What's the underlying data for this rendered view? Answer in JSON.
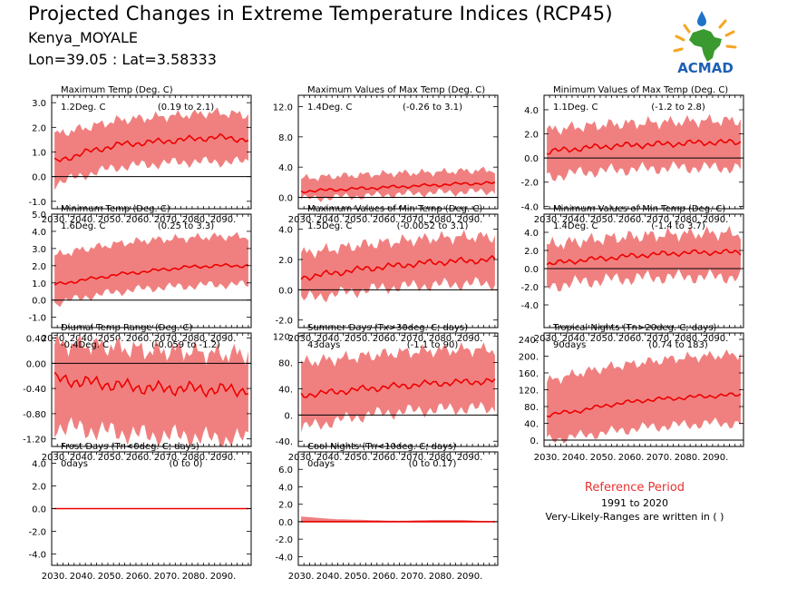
{
  "header": {
    "title": "Projected Changes in Extreme Temperature Indices (RCP45)",
    "location": "Kenya_MOYALE",
    "coords": "Lon=39.05 : Lat=3.58333"
  },
  "logo": {
    "text": "ACMAD",
    "icon": "africa-map-logo-icon"
  },
  "reference": {
    "title": "Reference Period",
    "years": "1991 to 2020",
    "note": "Very-Likely-Ranges are written in ( )"
  },
  "colors": {
    "band": "#f08080",
    "median": "#ee0000",
    "zero": "#000000",
    "ref_text": "#e8312f"
  },
  "x_ticks": [
    "2030.",
    "2040.",
    "2050.",
    "2060.",
    "2070.",
    "2080.",
    "2090."
  ],
  "chart_data": [
    {
      "type": "area",
      "title": "Maximum Temp (Deg. C)",
      "value": "1.2Deg. C",
      "range": "(0.19 to 2.1)",
      "xlim": [
        2029,
        2100
      ],
      "ylim": [
        -1.3,
        3.3
      ],
      "yticks": [
        "-1.0",
        "0.0",
        "1.0",
        "2.0",
        "3.0"
      ],
      "median": [
        0.6,
        1.0,
        1.3,
        1.4,
        1.5,
        1.6,
        1.5
      ],
      "lower": [
        -0.3,
        0.1,
        0.4,
        0.5,
        0.6,
        0.6,
        0.6
      ],
      "upper": [
        1.7,
        2.0,
        2.3,
        2.4,
        2.5,
        2.6,
        2.5
      ],
      "amp": 0.15,
      "bandamp": 0.25
    },
    {
      "type": "area",
      "title": "Maximum Values of Max Temp (Deg. C)",
      "value": "1.4Deg. C",
      "range": "(-0.26 to 3.1)",
      "xlim": [
        2029,
        2100
      ],
      "ylim": [
        -1.5,
        13.5
      ],
      "yticks": [
        "0.0",
        "4.0",
        "8.0",
        "12.0"
      ],
      "median": [
        0.8,
        1.0,
        1.2,
        1.4,
        1.6,
        1.8,
        1.9
      ],
      "lower": [
        -0.2,
        0.0,
        0.2,
        0.4,
        0.6,
        0.7,
        0.8
      ],
      "upper": [
        2.5,
        2.8,
        3.0,
        3.2,
        3.3,
        3.5,
        3.6
      ],
      "amp": 0.25,
      "bandamp": 0.6
    },
    {
      "type": "area",
      "title": "Minimum Values of Max Temp (Deg. C)",
      "value": "1.1Deg. C",
      "range": "(-1.2 to 2.8)",
      "xlim": [
        2029,
        2100
      ],
      "ylim": [
        -4.2,
        5.2
      ],
      "yticks": [
        "-4.0",
        "-2.0",
        "0.0",
        "2.0",
        "4.0"
      ],
      "median": [
        0.5,
        0.8,
        1.0,
        1.1,
        1.2,
        1.3,
        1.3
      ],
      "lower": [
        -1.6,
        -1.2,
        -1.0,
        -0.9,
        -0.8,
        -0.8,
        -0.8
      ],
      "upper": [
        2.3,
        2.6,
        2.8,
        2.9,
        3.0,
        3.1,
        3.1
      ],
      "amp": 0.3,
      "bandamp": 0.6
    },
    {
      "type": "area",
      "title": "Minimum Temp (Deg. C)",
      "value": "1.6Deg. C",
      "range": "(0.25 to 3.3)",
      "xlim": [
        2029,
        2100
      ],
      "ylim": [
        -1.6,
        5.0
      ],
      "yticks": [
        "-1.0",
        "0.0",
        "1.0",
        "2.0",
        "3.0",
        "4.0",
        "5.0"
      ],
      "median": [
        0.9,
        1.2,
        1.5,
        1.7,
        1.9,
        2.0,
        2.0
      ],
      "lower": [
        -0.2,
        0.2,
        0.5,
        0.7,
        0.8,
        0.9,
        0.9
      ],
      "upper": [
        2.6,
        3.0,
        3.3,
        3.5,
        3.6,
        3.7,
        3.7
      ],
      "amp": 0.12,
      "bandamp": 0.3
    },
    {
      "type": "area",
      "title": "Maximum Values of Min Temp (Deg. C)",
      "value": "1.5Deg. C",
      "range": "(-0.0052 to 3.1)",
      "xlim": [
        2029,
        2100
      ],
      "ylim": [
        -2.5,
        5.0
      ],
      "yticks": [
        "-2.0",
        "0.0",
        "2.0",
        "4.0"
      ],
      "median": [
        0.8,
        1.1,
        1.4,
        1.6,
        1.8,
        1.9,
        2.0
      ],
      "lower": [
        -0.6,
        -0.3,
        0.0,
        0.2,
        0.3,
        0.4,
        0.4
      ],
      "upper": [
        2.4,
        2.7,
        3.0,
        3.2,
        3.4,
        3.5,
        3.5
      ],
      "amp": 0.25,
      "bandamp": 0.5
    },
    {
      "type": "area",
      "title": "Minimum Values of Min Temp (Deg. C)",
      "value": "1.4Deg. C",
      "range": "(-1.4 to 3.7)",
      "xlim": [
        2029,
        2100
      ],
      "ylim": [
        -6.5,
        6.0
      ],
      "yticks": [
        "-4.0",
        "-2.0",
        "0.0",
        "2.0",
        "4.0"
      ],
      "median": [
        0.5,
        0.9,
        1.2,
        1.5,
        1.7,
        1.8,
        1.8
      ],
      "lower": [
        -2.0,
        -1.5,
        -1.2,
        -1.0,
        -0.9,
        -0.9,
        -0.9
      ],
      "upper": [
        2.6,
        3.0,
        3.4,
        3.6,
        3.8,
        3.9,
        3.9
      ],
      "amp": 0.35,
      "bandamp": 0.9
    },
    {
      "type": "area",
      "title": "Diurnal Temp Range (Deg. C)",
      "value": "-0.4Deg. C",
      "range": "(-0.059 to -1.2)",
      "xlim": [
        2029,
        2100
      ],
      "ylim": [
        -1.32,
        0.48
      ],
      "yticks": [
        "-1.20",
        "-0.80",
        "-0.40",
        "0.00",
        "0.40"
      ],
      "median": [
        -0.25,
        -0.3,
        -0.35,
        -0.4,
        -0.4,
        -0.42,
        -0.42
      ],
      "lower": [
        -1.0,
        -1.05,
        -1.1,
        -1.15,
        -1.15,
        -1.2,
        -1.2
      ],
      "upper": [
        0.3,
        0.3,
        0.25,
        0.2,
        0.2,
        0.15,
        0.15
      ],
      "amp": 0.12,
      "bandamp": 0.2
    },
    {
      "type": "area",
      "title": "Summer Days (Tx>30deg. C; days)",
      "value": "43days",
      "range": "(-1.1 to 90)",
      "xlim": [
        2029,
        2100
      ],
      "ylim": [
        -48,
        125
      ],
      "yticks": [
        "-40.",
        "0.",
        "40.",
        "80.",
        "120."
      ],
      "median": [
        30,
        35,
        40,
        44,
        48,
        50,
        52
      ],
      "lower": [
        -20,
        -10,
        0,
        5,
        8,
        10,
        10
      ],
      "upper": [
        80,
        85,
        90,
        95,
        98,
        100,
        100
      ],
      "amp": 6,
      "bandamp": 12
    },
    {
      "type": "area",
      "title": "Tropical Nights (Tn>20deg. C; days)",
      "value": "90days",
      "range": "(0.74 to 183)",
      "xlim": [
        2029,
        2100
      ],
      "ylim": [
        -15,
        255
      ],
      "yticks": [
        "0.",
        "40.",
        "80.",
        "120.",
        "160.",
        "200.",
        "240."
      ],
      "median": [
        60,
        70,
        85,
        95,
        100,
        105,
        108
      ],
      "lower": [
        0,
        10,
        20,
        30,
        35,
        40,
        40
      ],
      "upper": [
        140,
        160,
        175,
        185,
        195,
        200,
        205
      ],
      "amp": 6,
      "bandamp": 15
    },
    {
      "type": "area",
      "title": "Frost Days (Tn<0deg. C; days)",
      "value": "0days",
      "range": "(0 to 0)",
      "xlim": [
        2029,
        2100
      ],
      "ylim": [
        -5.0,
        5.0
      ],
      "yticks": [
        "-4.0",
        "-2.0",
        "0.0",
        "2.0",
        "4.0"
      ],
      "median": [
        0,
        0,
        0,
        0,
        0,
        0,
        0
      ],
      "lower": [
        0,
        0,
        0,
        0,
        0,
        0,
        0
      ],
      "upper": [
        0,
        0,
        0,
        0,
        0,
        0,
        0
      ],
      "amp": 0,
      "bandamp": 0
    },
    {
      "type": "area",
      "title": "Cool Nights (Tn<10deg. C; days)",
      "value": "0days",
      "range": "(0 to 0.17)",
      "xlim": [
        2029,
        2100
      ],
      "ylim": [
        -5.0,
        8.0
      ],
      "yticks": [
        "-4.0",
        "-2.0",
        "0.0",
        "2.0",
        "4.0",
        "6.0"
      ],
      "median": [
        0,
        0,
        0,
        0,
        0,
        0,
        0
      ],
      "lower": [
        0,
        0,
        0,
        0,
        0,
        0,
        0
      ],
      "upper": [
        0.6,
        0.3,
        0.2,
        0.1,
        0.2,
        0.2,
        0.0
      ],
      "amp": 0,
      "bandamp": 0
    }
  ]
}
